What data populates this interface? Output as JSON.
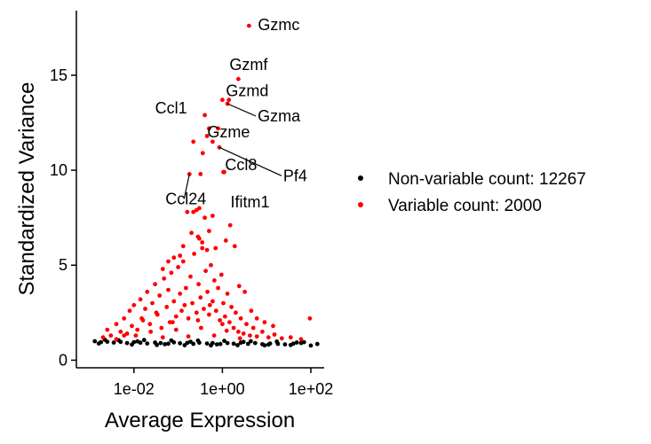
{
  "chart_data": {
    "type": "scatter",
    "title": "",
    "xlabel": "Average Expression",
    "ylabel": "Standardized Variance",
    "x_scale": "log10",
    "xlim": [
      0.0005,
      200
    ],
    "ylim": [
      -0.4,
      18.4
    ],
    "x_ticks": [
      {
        "value": 0.01,
        "label": "1e-02"
      },
      {
        "value": 1,
        "label": "1e+00"
      },
      {
        "value": 100,
        "label": "1e+02"
      }
    ],
    "y_ticks": [
      {
        "value": 0,
        "label": "0"
      },
      {
        "value": 5,
        "label": "5"
      },
      {
        "value": 10,
        "label": "10"
      },
      {
        "value": 15,
        "label": "15"
      }
    ],
    "grid": false,
    "legend_position": "right",
    "series": [
      {
        "name": "Non-variable count: 12267",
        "color": "#000000",
        "points": [
          [
            0.0013,
            1.0
          ],
          [
            0.0018,
            0.95
          ],
          [
            0.0025,
            0.97
          ],
          [
            0.0035,
            0.93
          ],
          [
            0.005,
            0.96
          ],
          [
            0.007,
            0.9
          ],
          [
            0.01,
            0.95
          ],
          [
            0.014,
            0.92
          ],
          [
            0.02,
            0.88
          ],
          [
            0.03,
            0.93
          ],
          [
            0.04,
            0.9
          ],
          [
            0.06,
            0.87
          ],
          [
            0.08,
            0.94
          ],
          [
            0.11,
            0.89
          ],
          [
            0.16,
            0.91
          ],
          [
            0.22,
            0.86
          ],
          [
            0.3,
            0.92
          ],
          [
            0.45,
            0.88
          ],
          [
            0.6,
            0.9
          ],
          [
            0.9,
            0.85
          ],
          [
            1.3,
            0.9
          ],
          [
            1.8,
            0.87
          ],
          [
            2.6,
            0.92
          ],
          [
            3.8,
            0.86
          ],
          [
            5.5,
            0.9
          ],
          [
            8,
            0.84
          ],
          [
            12,
            0.88
          ],
          [
            18,
            0.86
          ],
          [
            26,
            0.83
          ],
          [
            40,
            0.87
          ],
          [
            60,
            0.9
          ],
          [
            100,
            0.77
          ],
          [
            0.0022,
            1.08
          ],
          [
            0.0045,
            1.05
          ],
          [
            0.009,
            0.82
          ],
          [
            0.017,
            1.06
          ],
          [
            0.033,
            0.8
          ],
          [
            0.07,
            1.04
          ],
          [
            0.14,
            0.79
          ],
          [
            0.28,
            1.03
          ],
          [
            0.55,
            0.78
          ],
          [
            1.1,
            1.02
          ],
          [
            2.2,
            0.79
          ],
          [
            4.4,
            1.0
          ],
          [
            9,
            0.78
          ],
          [
            17,
            0.98
          ],
          [
            35,
            0.8
          ],
          [
            70,
            0.95
          ],
          [
            0.0016,
            0.88
          ],
          [
            0.012,
            0.99
          ],
          [
            0.05,
            0.84
          ],
          [
            0.19,
            0.97
          ],
          [
            0.75,
            0.83
          ],
          [
            3,
            0.96
          ],
          [
            11,
            0.82
          ],
          [
            48,
            0.93
          ],
          [
            140,
            0.85
          ]
        ]
      },
      {
        "name": "Variable count: 2000",
        "color": "#ff0000",
        "points": [
          [
            0.002,
            1.2
          ],
          [
            0.0025,
            1.6
          ],
          [
            0.003,
            1.3
          ],
          [
            0.004,
            1.9
          ],
          [
            0.005,
            1.5
          ],
          [
            0.006,
            2.2
          ],
          [
            0.007,
            1.4
          ],
          [
            0.008,
            2.6
          ],
          [
            0.009,
            1.8
          ],
          [
            0.01,
            2.9
          ],
          [
            0.012,
            1.6
          ],
          [
            0.014,
            3.2
          ],
          [
            0.016,
            2.1
          ],
          [
            0.018,
            2.7
          ],
          [
            0.02,
            3.6
          ],
          [
            0.023,
            1.9
          ],
          [
            0.026,
            3.0
          ],
          [
            0.03,
            4.0
          ],
          [
            0.034,
            2.4
          ],
          [
            0.038,
            3.4
          ],
          [
            0.042,
            1.7
          ],
          [
            0.048,
            4.3
          ],
          [
            0.055,
            2.8
          ],
          [
            0.06,
            3.7
          ],
          [
            0.065,
            2.0
          ],
          [
            0.07,
            4.6
          ],
          [
            0.08,
            3.1
          ],
          [
            0.09,
            2.3
          ],
          [
            0.1,
            4.9
          ],
          [
            0.11,
            3.5
          ],
          [
            0.12,
            2.6
          ],
          [
            0.13,
            5.2
          ],
          [
            0.15,
            3.8
          ],
          [
            0.17,
            2.2
          ],
          [
            0.19,
            4.4
          ],
          [
            0.21,
            3.0
          ],
          [
            0.23,
            5.6
          ],
          [
            0.26,
            2.5
          ],
          [
            0.29,
            4.0
          ],
          [
            0.32,
            3.3
          ],
          [
            0.35,
            5.9
          ],
          [
            0.38,
            2.7
          ],
          [
            0.42,
            4.7
          ],
          [
            0.46,
            3.6
          ],
          [
            0.5,
            2.4
          ],
          [
            0.55,
            5.0
          ],
          [
            0.6,
            3.1
          ],
          [
            0.66,
            4.2
          ],
          [
            0.72,
            2.6
          ],
          [
            0.8,
            3.8
          ],
          [
            0.88,
            2.1
          ],
          [
            0.95,
            4.5
          ],
          [
            1.05,
            3.0
          ],
          [
            1.15,
            2.3
          ],
          [
            1.3,
            3.5
          ],
          [
            1.45,
            2.0
          ],
          [
            1.6,
            2.8
          ],
          [
            1.8,
            1.7
          ],
          [
            2.0,
            2.5
          ],
          [
            2.3,
            1.5
          ],
          [
            2.6,
            2.2
          ],
          [
            3.0,
            1.4
          ],
          [
            3.5,
            1.9
          ],
          [
            4.2,
            1.3
          ],
          [
            5.0,
            1.7
          ],
          [
            6,
            1.25
          ],
          [
            8,
            1.5
          ],
          [
            11,
            1.2
          ],
          [
            15,
            1.35
          ],
          [
            22,
            1.15
          ],
          [
            35,
            1.2
          ],
          [
            60,
            1.1
          ],
          [
            95,
            2.2
          ],
          [
            0.004,
            1.1
          ],
          [
            0.011,
            1.3
          ],
          [
            0.024,
            1.5
          ],
          [
            0.045,
            1.2
          ],
          [
            0.09,
            1.6
          ],
          [
            0.17,
            1.25
          ],
          [
            0.33,
            1.7
          ],
          [
            0.65,
            1.3
          ],
          [
            1.25,
            1.55
          ],
          [
            2.5,
            1.15
          ],
          [
            0.015,
            2.2
          ],
          [
            0.032,
            2.5
          ],
          [
            0.075,
            2.0
          ],
          [
            0.14,
            2.9
          ],
          [
            0.28,
            2.1
          ],
          [
            0.52,
            2.9
          ],
          [
            1.0,
            1.9
          ],
          [
            0.006,
            1.3
          ],
          [
            0.2,
            6.7
          ],
          [
            0.22,
            7.8
          ],
          [
            0.26,
            7.9
          ],
          [
            0.3,
            8.0
          ],
          [
            0.4,
            7.5
          ],
          [
            0.5,
            6.8
          ],
          [
            0.6,
            7.6
          ],
          [
            0.3,
            6.4
          ],
          [
            0.35,
            6.2
          ],
          [
            0.16,
            7.8
          ],
          [
            0.13,
            6.0
          ],
          [
            0.28,
            6.5
          ],
          [
            0.45,
            5.8
          ],
          [
            0.7,
            5.9
          ],
          [
            1.2,
            6.3
          ],
          [
            1.5,
            7.1
          ],
          [
            1.9,
            6.0
          ],
          [
            0.11,
            5.5
          ],
          [
            0.08,
            5.4
          ],
          [
            0.06,
            5.2
          ],
          [
            0.045,
            4.8
          ],
          [
            2.4,
            3.9
          ],
          [
            3.2,
            3.6
          ],
          [
            4.5,
            2.6
          ],
          [
            6,
            2.2
          ],
          [
            9,
            2.0
          ],
          [
            14,
            1.8
          ],
          [
            0.22,
            11.5
          ],
          [
            0.32,
            9.8
          ],
          [
            0.8,
            12.2
          ],
          [
            1.1,
            9.9
          ],
          [
            1.4,
            13.7
          ],
          [
            0.45,
            11.8
          ],
          [
            0.36,
            10.9
          ]
        ]
      }
    ],
    "highlighted_genes": [
      {
        "label": "Gzmc",
        "x": 4.0,
        "y": 17.6
      },
      {
        "label": "Gzmf",
        "x": 2.3,
        "y": 14.8
      },
      {
        "label": "Ccl1",
        "x": 0.4,
        "y": 12.9
      },
      {
        "label": "Gzmd",
        "x": 1.0,
        "y": 13.7
      },
      {
        "label": "Gzma",
        "x": 1.3,
        "y": 13.5
      },
      {
        "label": "Gzme",
        "x": 0.5,
        "y": 12.2
      },
      {
        "label": "Ccl8",
        "x": 0.6,
        "y": 11.5
      },
      {
        "label": "Pf4",
        "x": 0.85,
        "y": 11.2
      },
      {
        "label": "Ccl24",
        "x": 0.18,
        "y": 9.8
      },
      {
        "label": "Ifitm1",
        "x": 1.05,
        "y": 9.9
      }
    ]
  }
}
